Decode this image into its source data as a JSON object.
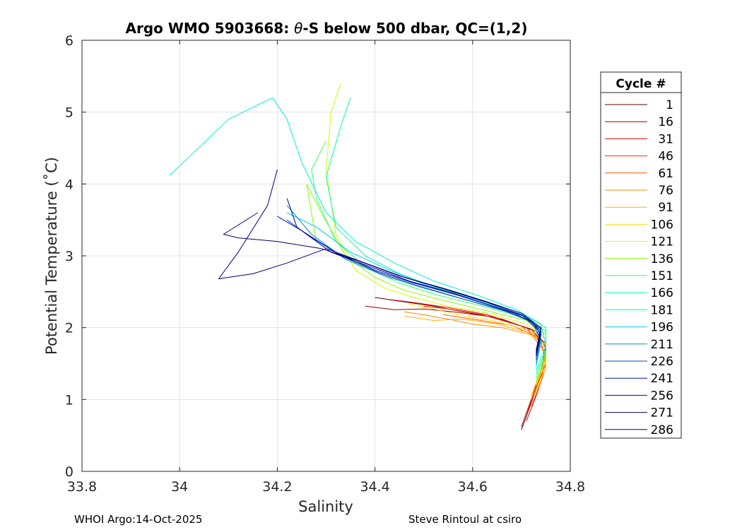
{
  "chart_data": {
    "type": "line",
    "title": "Argo WMO 5903668: θ-S below 500 dbar,  QC=(1,2)",
    "title_parts": {
      "left": "Argo WMO 5903668: ",
      "theta": "θ",
      "right": "-S below 500 dbar,  QC=(1,2)"
    },
    "xlabel": "Salinity",
    "ylabel": "Potential Temperature (˚C)",
    "xlim": [
      33.8,
      34.8
    ],
    "ylim": [
      0,
      6
    ],
    "xticks": [
      33.8,
      34.0,
      34.2,
      34.4,
      34.6,
      34.8
    ],
    "xtick_labels": [
      "33.8",
      "34",
      "34.2",
      "34.4",
      "34.6",
      "34.8"
    ],
    "yticks": [
      0,
      1,
      2,
      3,
      4,
      5,
      6
    ],
    "ytick_labels": [
      "0",
      "1",
      "2",
      "3",
      "4",
      "5",
      "6"
    ],
    "grid": true,
    "legend_title": "Cycle #",
    "legend_position": "right-outside",
    "series": [
      {
        "name": "1",
        "color": "#5a0000",
        "points": [
          [
            34.7,
            0.58
          ],
          [
            34.72,
            0.95
          ],
          [
            34.74,
            1.35
          ],
          [
            34.75,
            1.72
          ],
          [
            34.73,
            1.95
          ],
          [
            34.66,
            2.12
          ],
          [
            34.58,
            2.22
          ],
          [
            34.52,
            2.3
          ],
          [
            34.46,
            2.36
          ],
          [
            34.4,
            2.42
          ]
        ]
      },
      {
        "name": "16",
        "color": "#9a0000",
        "points": [
          [
            34.7,
            0.62
          ],
          [
            34.72,
            1.0
          ],
          [
            34.74,
            1.4
          ],
          [
            34.75,
            1.75
          ],
          [
            34.72,
            1.98
          ],
          [
            34.64,
            2.15
          ],
          [
            34.56,
            2.22
          ],
          [
            34.5,
            2.26
          ],
          [
            34.44,
            2.25
          ],
          [
            34.38,
            2.3
          ]
        ]
      },
      {
        "name": "31",
        "color": "#dd0000",
        "points": [
          [
            34.71,
            0.7
          ],
          [
            34.73,
            1.05
          ],
          [
            34.75,
            1.45
          ],
          [
            34.75,
            1.78
          ],
          [
            34.71,
            2.0
          ],
          [
            34.63,
            2.18
          ],
          [
            34.55,
            2.28
          ],
          [
            34.48,
            2.35
          ],
          [
            34.42,
            2.4
          ]
        ]
      },
      {
        "name": "46",
        "color": "#ff2a00",
        "points": [
          [
            34.71,
            0.8
          ],
          [
            34.73,
            1.15
          ],
          [
            34.75,
            1.5
          ],
          [
            34.74,
            1.82
          ],
          [
            34.7,
            2.02
          ],
          [
            34.62,
            2.18
          ],
          [
            34.55,
            2.26
          ],
          [
            34.5,
            2.3
          ]
        ]
      },
      {
        "name": "61",
        "color": "#ff5500",
        "points": [
          [
            34.72,
            0.9
          ],
          [
            34.74,
            1.25
          ],
          [
            34.75,
            1.6
          ],
          [
            34.73,
            1.88
          ],
          [
            34.68,
            2.03
          ],
          [
            34.6,
            2.12
          ],
          [
            34.54,
            2.18
          ]
        ]
      },
      {
        "name": "76",
        "color": "#ff8800",
        "points": [
          [
            34.72,
            1.0
          ],
          [
            34.74,
            1.35
          ],
          [
            34.75,
            1.65
          ],
          [
            34.72,
            1.9
          ],
          [
            34.66,
            2.0
          ],
          [
            34.6,
            2.05
          ],
          [
            34.55,
            2.12
          ],
          [
            34.5,
            2.18
          ],
          [
            34.46,
            2.22
          ]
        ]
      },
      {
        "name": "91",
        "color": "#ffb000",
        "points": [
          [
            34.72,
            1.05
          ],
          [
            34.74,
            1.4
          ],
          [
            34.75,
            1.7
          ],
          [
            34.72,
            1.92
          ],
          [
            34.65,
            2.05
          ],
          [
            34.58,
            2.12
          ],
          [
            34.52,
            2.1
          ],
          [
            34.46,
            2.16
          ]
        ]
      },
      {
        "name": "106",
        "color": "#ffdd00",
        "points": [
          [
            34.73,
            1.1
          ],
          [
            34.75,
            1.45
          ],
          [
            34.75,
            1.75
          ],
          [
            34.72,
            1.95
          ],
          [
            34.64,
            2.1
          ],
          [
            34.57,
            2.18
          ],
          [
            34.52,
            2.26
          ],
          [
            34.47,
            2.33
          ]
        ]
      },
      {
        "name": "121",
        "color": "#ccff00",
        "points": [
          [
            34.73,
            1.2
          ],
          [
            34.75,
            1.55
          ],
          [
            34.75,
            1.85
          ],
          [
            34.71,
            2.05
          ],
          [
            34.63,
            2.2
          ],
          [
            34.55,
            2.3
          ],
          [
            34.48,
            2.42
          ],
          [
            34.42,
            2.55
          ],
          [
            34.36,
            2.8
          ],
          [
            34.32,
            3.3
          ],
          [
            34.3,
            4.2
          ],
          [
            34.31,
            5.0
          ],
          [
            34.33,
            5.4
          ]
        ]
      },
      {
        "name": "136",
        "color": "#80ff00",
        "points": [
          [
            34.73,
            1.25
          ],
          [
            34.75,
            1.6
          ],
          [
            34.75,
            1.9
          ],
          [
            34.71,
            2.1
          ],
          [
            34.62,
            2.25
          ],
          [
            34.54,
            2.38
          ],
          [
            34.46,
            2.52
          ],
          [
            34.4,
            2.7
          ],
          [
            34.34,
            3.0
          ],
          [
            34.29,
            3.6
          ],
          [
            34.26,
            4.0
          ],
          [
            34.28,
            3.2
          ]
        ]
      },
      {
        "name": "151",
        "color": "#30ff60",
        "points": [
          [
            34.73,
            1.3
          ],
          [
            34.75,
            1.65
          ],
          [
            34.75,
            1.95
          ],
          [
            34.7,
            2.15
          ],
          [
            34.62,
            2.3
          ],
          [
            34.53,
            2.45
          ],
          [
            34.45,
            2.62
          ],
          [
            34.38,
            2.85
          ],
          [
            34.32,
            3.2
          ],
          [
            34.28,
            3.8
          ],
          [
            34.27,
            4.2
          ],
          [
            34.3,
            4.6
          ]
        ]
      },
      {
        "name": "166",
        "color": "#00ffa0",
        "points": [
          [
            34.73,
            1.35
          ],
          [
            34.75,
            1.7
          ],
          [
            34.75,
            2.0
          ],
          [
            34.7,
            2.2
          ],
          [
            34.62,
            2.38
          ],
          [
            34.53,
            2.55
          ],
          [
            34.45,
            2.75
          ],
          [
            34.38,
            3.0
          ],
          [
            34.32,
            3.4
          ],
          [
            34.3,
            4.1
          ],
          [
            34.33,
            4.8
          ],
          [
            34.35,
            5.2
          ]
        ]
      },
      {
        "name": "181",
        "color": "#00f0d8",
        "points": [
          [
            34.73,
            1.4
          ],
          [
            34.75,
            1.75
          ],
          [
            34.74,
            2.05
          ],
          [
            34.69,
            2.25
          ],
          [
            34.61,
            2.45
          ],
          [
            34.52,
            2.65
          ],
          [
            34.44,
            2.9
          ],
          [
            34.36,
            3.2
          ],
          [
            34.3,
            3.6
          ],
          [
            34.25,
            4.3
          ],
          [
            34.22,
            4.9
          ],
          [
            34.19,
            5.2
          ],
          [
            34.1,
            4.9
          ],
          [
            33.98,
            4.12
          ]
        ]
      },
      {
        "name": "196",
        "color": "#00c8ff",
        "points": [
          [
            34.73,
            1.45
          ],
          [
            34.74,
            1.8
          ],
          [
            34.73,
            2.05
          ],
          [
            34.68,
            2.22
          ],
          [
            34.6,
            2.4
          ],
          [
            34.51,
            2.58
          ],
          [
            34.43,
            2.8
          ],
          [
            34.35,
            3.05
          ],
          [
            34.28,
            3.4
          ],
          [
            34.22,
            3.6
          ]
        ]
      },
      {
        "name": "211",
        "color": "#0090c0",
        "points": [
          [
            34.73,
            1.5
          ],
          [
            34.74,
            1.85
          ],
          [
            34.72,
            2.08
          ],
          [
            34.67,
            2.22
          ],
          [
            34.59,
            2.38
          ],
          [
            34.5,
            2.55
          ],
          [
            34.42,
            2.72
          ],
          [
            34.34,
            2.95
          ],
          [
            34.27,
            3.3
          ],
          [
            34.22,
            3.7
          ]
        ]
      },
      {
        "name": "226",
        "color": "#0050b0",
        "points": [
          [
            34.73,
            1.55
          ],
          [
            34.74,
            1.9
          ],
          [
            34.72,
            2.1
          ],
          [
            34.66,
            2.25
          ],
          [
            34.58,
            2.4
          ],
          [
            34.49,
            2.58
          ],
          [
            34.41,
            2.76
          ],
          [
            34.33,
            3.0
          ],
          [
            34.26,
            3.3
          ],
          [
            34.22,
            3.5
          ]
        ]
      },
      {
        "name": "241",
        "color": "#0018c0",
        "points": [
          [
            34.73,
            1.6
          ],
          [
            34.74,
            1.92
          ],
          [
            34.71,
            2.12
          ],
          [
            34.65,
            2.28
          ],
          [
            34.57,
            2.45
          ],
          [
            34.48,
            2.62
          ],
          [
            34.4,
            2.8
          ],
          [
            34.32,
            3.05
          ],
          [
            34.25,
            3.35
          ],
          [
            34.2,
            3.55
          ]
        ]
      },
      {
        "name": "256",
        "color": "#0000a0",
        "points": [
          [
            34.73,
            1.62
          ],
          [
            34.74,
            1.95
          ],
          [
            34.71,
            2.15
          ],
          [
            34.64,
            2.3
          ],
          [
            34.56,
            2.48
          ],
          [
            34.47,
            2.65
          ],
          [
            34.39,
            2.85
          ],
          [
            34.31,
            3.05
          ],
          [
            34.24,
            3.4
          ],
          [
            34.22,
            3.8
          ]
        ]
      },
      {
        "name": "271",
        "color": "#000080",
        "points": [
          [
            34.73,
            1.65
          ],
          [
            34.74,
            1.98
          ],
          [
            34.7,
            2.18
          ],
          [
            34.63,
            2.35
          ],
          [
            34.55,
            2.52
          ],
          [
            34.46,
            2.7
          ],
          [
            34.38,
            2.9
          ],
          [
            34.3,
            3.1
          ],
          [
            34.22,
            2.9
          ],
          [
            34.15,
            2.75
          ],
          [
            34.08,
            2.68
          ],
          [
            34.12,
            3.05
          ],
          [
            34.18,
            3.7
          ],
          [
            34.2,
            4.2
          ]
        ]
      },
      {
        "name": "286",
        "color": "#000060",
        "points": [
          [
            34.73,
            1.68
          ],
          [
            34.74,
            2.0
          ],
          [
            34.7,
            2.2
          ],
          [
            34.62,
            2.38
          ],
          [
            34.54,
            2.55
          ],
          [
            34.45,
            2.72
          ],
          [
            34.37,
            2.92
          ],
          [
            34.29,
            3.1
          ],
          [
            34.2,
            3.2
          ],
          [
            34.12,
            3.25
          ],
          [
            34.09,
            3.3
          ],
          [
            34.16,
            3.6
          ]
        ]
      }
    ]
  },
  "footer": {
    "left": "WHOI Argo:14-Oct-2025",
    "right": "Steve Rintoul at csiro"
  }
}
